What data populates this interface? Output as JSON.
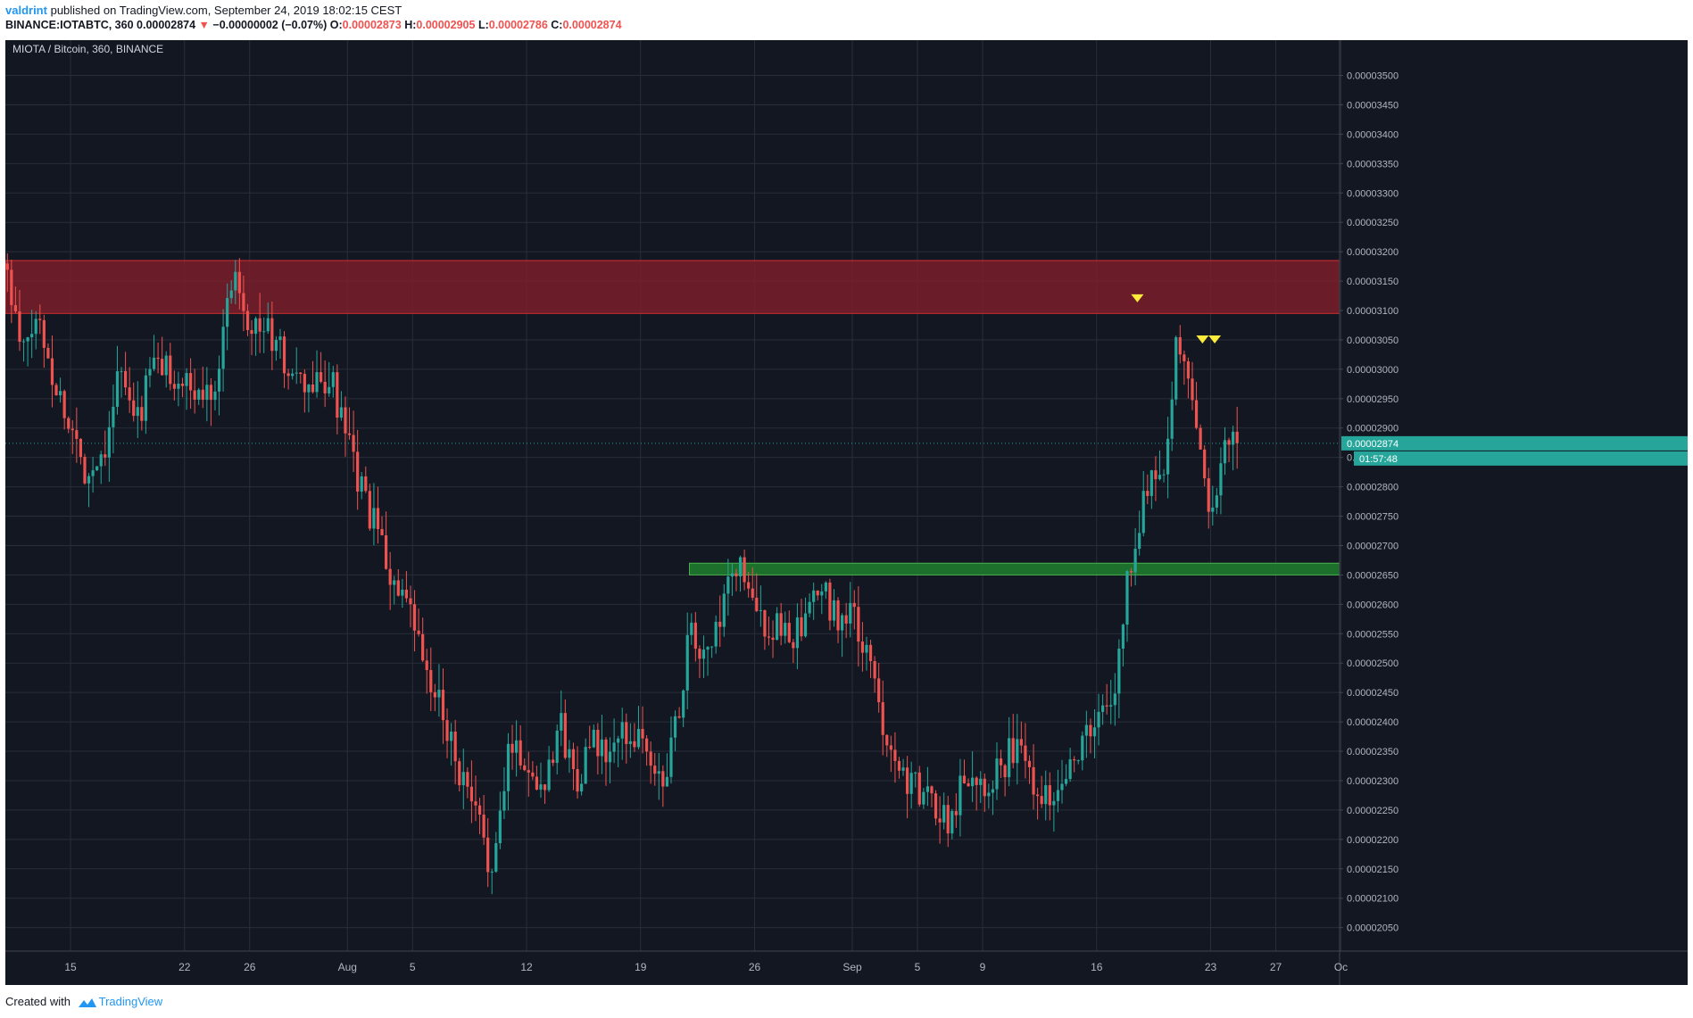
{
  "header": {
    "user": "valdrint",
    "published": "published on TradingView.com, September 24, 2019 18:02:15 CEST",
    "symbol": "BINANCE:IOTABTC, 360",
    "last": "0.00002874",
    "change_arrow": "▼",
    "change": "−0.00000002 (−0.07%)",
    "o_label": "O:",
    "o_value": "0.00002873",
    "h_label": "H:",
    "h_value": "0.00002905",
    "l_label": "L:",
    "l_value": "0.00002786",
    "c_label": "C:",
    "c_value": "0.00002874"
  },
  "footer": {
    "created_with": "Created with",
    "brand": "TradingView",
    "logo_icon": "tradingview-logo-icon"
  },
  "colors": {
    "background": "#131722",
    "grid": "#2a2e39",
    "axis_text": "#b2b5be",
    "up": "#26a69a",
    "down": "#ef5350",
    "resistance_fill": "#7a1f2a",
    "resistance_border": "#d32f2f",
    "support_fill": "#1e7a2c",
    "support_border": "#4caf50",
    "marker": "#ffeb3b",
    "price_tag": "#26a69a"
  },
  "chart_data": {
    "type": "candlestick",
    "title": "MIOTA / Bitcoin, 360, BINANCE",
    "interval": "360",
    "y_scale": "linear",
    "ylim": [
      2.01e-05,
      3.56e-05
    ],
    "y_ticks": [
      "0.00003500",
      "0.00003450",
      "0.00003400",
      "0.00003350",
      "0.00003300",
      "0.00003250",
      "0.00003200",
      "0.00003150",
      "0.00003100",
      "0.00003050",
      "0.00003000",
      "0.00002950",
      "0.00002900",
      "0.00002850",
      "0.00002800",
      "0.00002750",
      "0.00002700",
      "0.00002650",
      "0.00002600",
      "0.00002550",
      "0.00002500",
      "0.00002450",
      "0.00002400",
      "0.00002350",
      "0.00002300",
      "0.00002250",
      "0.00002200",
      "0.00002150",
      "0.00002100",
      "0.00002050"
    ],
    "x_range": [
      "2019-07-11T00:00",
      "2019-09-30T22:00"
    ],
    "x_ticks": [
      {
        "label": "15",
        "date": "2019-07-15"
      },
      {
        "label": "22",
        "date": "2019-07-22"
      },
      {
        "label": "26",
        "date": "2019-07-26"
      },
      {
        "label": "Aug",
        "date": "2019-08-01"
      },
      {
        "label": "5",
        "date": "2019-08-05"
      },
      {
        "label": "12",
        "date": "2019-08-12"
      },
      {
        "label": "19",
        "date": "2019-08-19"
      },
      {
        "label": "26",
        "date": "2019-08-26"
      },
      {
        "label": "Sep",
        "date": "2019-09-01"
      },
      {
        "label": "5",
        "date": "2019-09-05"
      },
      {
        "label": "9",
        "date": "2019-09-09"
      },
      {
        "label": "16",
        "date": "2019-09-16"
      },
      {
        "label": "23",
        "date": "2019-09-23"
      },
      {
        "label": "27",
        "date": "2019-09-27"
      },
      {
        "label": "Oc",
        "date": "2019-10-01"
      }
    ],
    "close_path": [
      [
        "2019-07-11",
        3.18e-05
      ],
      [
        "2019-07-12",
        3.02e-05
      ],
      [
        "2019-07-13",
        3.09e-05
      ],
      [
        "2019-07-14",
        2.98e-05
      ],
      [
        "2019-07-15",
        2.9e-05
      ],
      [
        "2019-07-16",
        2.82e-05
      ],
      [
        "2019-07-17",
        2.86e-05
      ],
      [
        "2019-07-18",
        3e-05
      ],
      [
        "2019-07-19",
        2.9e-05
      ],
      [
        "2019-07-20",
        3.01e-05
      ],
      [
        "2019-07-21",
        3e-05
      ],
      [
        "2019-07-22",
        2.97e-05
      ],
      [
        "2019-07-23",
        2.95e-05
      ],
      [
        "2019-07-24",
        2.99e-05
      ],
      [
        "2019-07-25",
        3.18e-05
      ],
      [
        "2019-07-26",
        3.08e-05
      ],
      [
        "2019-07-27",
        3.07e-05
      ],
      [
        "2019-07-28",
        3.02e-05
      ],
      [
        "2019-07-29",
        2.97e-05
      ],
      [
        "2019-07-30",
        2.97e-05
      ],
      [
        "2019-07-31",
        2.98e-05
      ],
      [
        "2019-08-01",
        2.87e-05
      ],
      [
        "2019-08-02",
        2.78e-05
      ],
      [
        "2019-08-03",
        2.71e-05
      ],
      [
        "2019-08-04",
        2.62e-05
      ],
      [
        "2019-08-05",
        2.57e-05
      ],
      [
        "2019-08-06",
        2.46e-05
      ],
      [
        "2019-08-07",
        2.41e-05
      ],
      [
        "2019-08-08",
        2.3e-05
      ],
      [
        "2019-08-09",
        2.23e-05
      ],
      [
        "2019-08-10",
        2.14e-05
      ],
      [
        "2019-08-11",
        2.38e-05
      ],
      [
        "2019-08-12",
        2.32e-05
      ],
      [
        "2019-08-13",
        2.29e-05
      ],
      [
        "2019-08-14",
        2.4e-05
      ],
      [
        "2019-08-15",
        2.3e-05
      ],
      [
        "2019-08-16",
        2.36e-05
      ],
      [
        "2019-08-17",
        2.34e-05
      ],
      [
        "2019-08-18",
        2.38e-05
      ],
      [
        "2019-08-19",
        2.38e-05
      ],
      [
        "2019-08-20",
        2.29e-05
      ],
      [
        "2019-08-21",
        2.36e-05
      ],
      [
        "2019-08-22",
        2.55e-05
      ],
      [
        "2019-08-23",
        2.5e-05
      ],
      [
        "2019-08-24",
        2.58e-05
      ],
      [
        "2019-08-25",
        2.68e-05
      ],
      [
        "2019-08-26",
        2.58e-05
      ],
      [
        "2019-08-27",
        2.56e-05
      ],
      [
        "2019-08-28",
        2.55e-05
      ],
      [
        "2019-08-29",
        2.55e-05
      ],
      [
        "2019-08-30",
        2.63e-05
      ],
      [
        "2019-08-31",
        2.58e-05
      ],
      [
        "2019-09-01",
        2.58e-05
      ],
      [
        "2019-09-02",
        2.5e-05
      ],
      [
        "2019-09-03",
        2.39e-05
      ],
      [
        "2019-09-04",
        2.32e-05
      ],
      [
        "2019-09-05",
        2.28e-05
      ],
      [
        "2019-09-06",
        2.26e-05
      ],
      [
        "2019-09-07",
        2.23e-05
      ],
      [
        "2019-09-08",
        2.32e-05
      ],
      [
        "2019-09-09",
        2.3e-05
      ],
      [
        "2019-09-10",
        2.32e-05
      ],
      [
        "2019-09-11",
        2.36e-05
      ],
      [
        "2019-09-12",
        2.31e-05
      ],
      [
        "2019-09-13",
        2.27e-05
      ],
      [
        "2019-09-14",
        2.32e-05
      ],
      [
        "2019-09-15",
        2.36e-05
      ],
      [
        "2019-09-16",
        2.4e-05
      ],
      [
        "2019-09-17",
        2.43e-05
      ],
      [
        "2019-09-18",
        2.66e-05
      ],
      [
        "2019-09-19",
        2.8e-05
      ],
      [
        "2019-09-20",
        2.82e-05
      ],
      [
        "2019-09-21",
        3.06e-05
      ],
      [
        "2019-09-22",
        2.92e-05
      ],
      [
        "2019-09-23",
        2.76e-05
      ],
      [
        "2019-09-24",
        2.87e-05
      ],
      [
        "2019-09-24T18:00",
        2.874e-05
      ]
    ],
    "zones": [
      {
        "kind": "resistance",
        "from": 3.095e-05,
        "to": 3.185e-05,
        "start": "2019-07-11"
      },
      {
        "kind": "support",
        "from": 2.65e-05,
        "to": 2.67e-05,
        "start": "2019-08-22"
      }
    ],
    "markers": [
      {
        "date": "2019-09-18T12:00",
        "price": 3.12e-05,
        "shape": "triangle-down"
      },
      {
        "date": "2019-09-22T12:00",
        "price": 3.05e-05,
        "shape": "triangle-down"
      },
      {
        "date": "2019-09-23T06:00",
        "price": 3.05e-05,
        "shape": "triangle-down"
      }
    ],
    "last_price_label": "0.00002874",
    "countdown_label": "01:57:48"
  }
}
